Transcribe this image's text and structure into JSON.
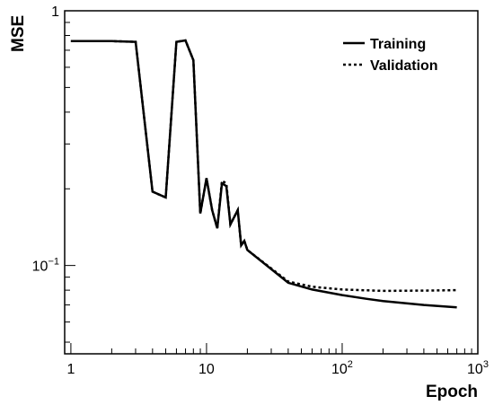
{
  "chart_data": {
    "type": "line",
    "title": "",
    "xlabel": "Epoch",
    "ylabel": "MSE",
    "x_scale": "log",
    "y_scale": "log",
    "xlim": [
      0.9,
      1000
    ],
    "ylim": [
      0.045,
      1.0
    ],
    "grid": false,
    "legend_placement": "top-right",
    "x_ticks": [
      {
        "value": 1,
        "label": "1",
        "exp": ""
      },
      {
        "value": 10,
        "label": "10",
        "exp": ""
      },
      {
        "value": 100,
        "label": "10",
        "exp": "2"
      },
      {
        "value": 1000,
        "label": "10",
        "exp": "3"
      }
    ],
    "y_ticks": [
      {
        "value": 1,
        "label": "1",
        "exp": ""
      },
      {
        "value": 0.1,
        "label": "10",
        "exp": "−1"
      }
    ],
    "series": [
      {
        "name": "Training",
        "color": "#000000",
        "dash": "none",
        "points": [
          [
            1,
            0.76
          ],
          [
            2,
            0.76
          ],
          [
            3,
            0.755
          ],
          [
            4,
            0.195
          ],
          [
            5,
            0.185
          ],
          [
            6,
            0.755
          ],
          [
            7,
            0.765
          ],
          [
            8,
            0.64
          ],
          [
            9,
            0.16
          ],
          [
            10,
            0.22
          ],
          [
            11,
            0.165
          ],
          [
            12,
            0.14
          ],
          [
            13,
            0.21
          ],
          [
            14,
            0.205
          ],
          [
            15,
            0.145
          ],
          [
            17,
            0.165
          ],
          [
            18,
            0.12
          ],
          [
            19,
            0.125
          ],
          [
            20,
            0.115
          ],
          [
            40,
            0.0855
          ],
          [
            60,
            0.0805
          ],
          [
            100,
            0.0765
          ],
          [
            150,
            0.074
          ],
          [
            200,
            0.0725
          ],
          [
            400,
            0.07
          ],
          [
            700,
            0.0685
          ]
        ]
      },
      {
        "name": "Validation",
        "color": "#000000",
        "dash": "3,3",
        "points": [
          [
            1,
            0.76
          ],
          [
            2,
            0.76
          ],
          [
            3,
            0.755
          ],
          [
            4,
            0.195
          ],
          [
            5,
            0.185
          ],
          [
            6,
            0.755
          ],
          [
            7,
            0.765
          ],
          [
            8,
            0.64
          ],
          [
            9,
            0.16
          ],
          [
            10,
            0.22
          ],
          [
            11,
            0.165
          ],
          [
            12,
            0.14
          ],
          [
            13,
            0.215
          ],
          [
            14,
            0.21
          ],
          [
            15,
            0.145
          ],
          [
            17,
            0.165
          ],
          [
            18,
            0.12
          ],
          [
            19,
            0.125
          ],
          [
            20,
            0.115
          ],
          [
            40,
            0.0865
          ],
          [
            60,
            0.0825
          ],
          [
            100,
            0.0805
          ],
          [
            200,
            0.0795
          ],
          [
            400,
            0.0797
          ],
          [
            700,
            0.08
          ]
        ]
      }
    ]
  }
}
